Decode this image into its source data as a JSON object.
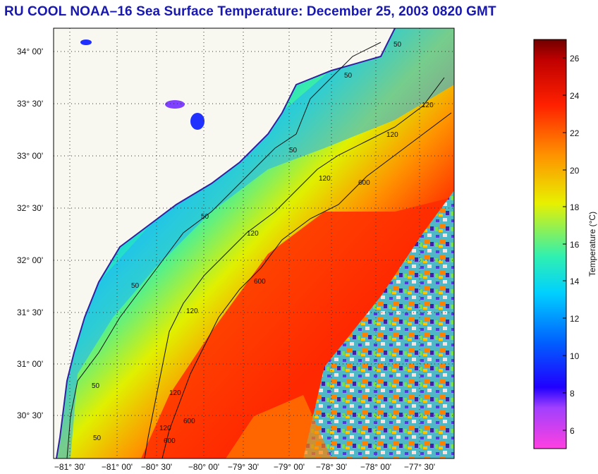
{
  "title": "RU COOL  NOAA–16  Sea Surface Temperature:  December 25, 2003 0820 GMT",
  "map": {
    "lat_labels": [
      "34° 00'",
      "33° 30'",
      "33° 00'",
      "32° 30'",
      "32° 00'",
      "31° 30'",
      "31° 00'",
      "30° 30'"
    ],
    "lon_labels": [
      "−81° 30'",
      "−81° 00'",
      "−80° 30'",
      "−80° 00'",
      "−79° 30'",
      "−79° 00'",
      "−78° 30'",
      "−78° 00'",
      "−77° 30'"
    ],
    "contours": [
      {
        "depth": "50",
        "labels": [
          "50",
          "50",
          "50",
          "50",
          "50",
          "50",
          "50"
        ]
      },
      {
        "depth": "120",
        "labels": [
          "120",
          "120",
          "120",
          "120",
          "120",
          "120",
          "120"
        ]
      },
      {
        "depth": "600",
        "labels": [
          "600",
          "600",
          "600",
          "600"
        ]
      }
    ]
  },
  "colorbar": {
    "label": "Temperature (°C)",
    "ticks": [
      "26",
      "24",
      "22",
      "20",
      "18",
      "16",
      "14",
      "12",
      "10",
      "8",
      "6"
    ],
    "min": 5,
    "max": 27
  },
  "colors": {
    "title": "#1818b0",
    "land": "#f8f8f0"
  }
}
